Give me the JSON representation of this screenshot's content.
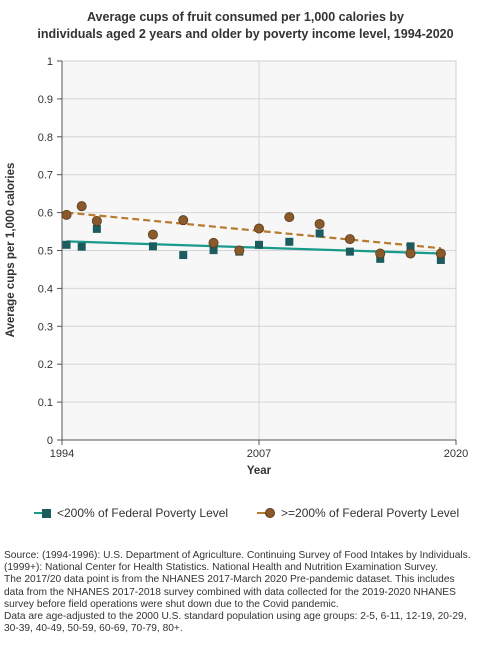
{
  "chart_data": {
    "type": "scatter",
    "title_lines": [
      "Average cups of fruit consumed per 1,000 calories by",
      "individuals aged 2 years and older by poverty income level, 1994-2020"
    ],
    "xlabel": "Year",
    "ylabel": "Average cups per 1,000 calories",
    "xlim": [
      1994,
      2020
    ],
    "ylim": [
      0,
      1
    ],
    "xticks": [
      "1994",
      "2007",
      "2020"
    ],
    "yticks": [
      "0",
      "0.1",
      "0.2",
      "0.3",
      "0.4",
      "0.5",
      "0.6",
      "0.7",
      "0.8",
      "0.9",
      "1"
    ],
    "grid": true,
    "legend_position": "bottom",
    "series": [
      {
        "name": "<200% of Federal Poverty Level",
        "color": "#1d5c5e",
        "trend_color": "#1a9a8a",
        "marker": "square",
        "trend_style": "solid",
        "x": [
          1994.3,
          1995.3,
          1996.3,
          2000,
          2002,
          2004,
          2005.7,
          2007,
          2009,
          2011,
          2013,
          2015,
          2017,
          2019
        ],
        "y": [
          0.515,
          0.51,
          0.557,
          0.511,
          0.488,
          0.501,
          0.497,
          0.515,
          0.523,
          0.545,
          0.497,
          0.478,
          0.511,
          0.475
        ],
        "trend": [
          [
            1994.3,
            0.524
          ],
          [
            2019,
            0.492
          ]
        ]
      },
      {
        "name": ">=200% of Federal Poverty Level",
        "color": "#8b5a2b",
        "trend_color": "#b87a2e",
        "marker": "circle",
        "trend_style": "dashed",
        "x": [
          1994.3,
          1995.3,
          1996.3,
          2000,
          2002,
          2004,
          2005.7,
          2007,
          2009,
          2011,
          2013,
          2015,
          2017,
          2019
        ],
        "y": [
          0.594,
          0.617,
          0.578,
          0.542,
          0.58,
          0.52,
          0.5,
          0.558,
          0.588,
          0.57,
          0.53,
          0.492,
          0.492,
          0.492
        ],
        "trend": [
          [
            1994.3,
            0.6
          ],
          [
            2019,
            0.506
          ]
        ]
      }
    ]
  },
  "source_lines": [
    "Source: (1994-1996): U.S. Department of Agriculture. Continuing Survey of Food Intakes by Individuals.",
    "(1999+): National Center for Health Statistics. National Health and Nutrition Examination Survey.",
    "The 2017/20 data point is from the NHANES 2017-March 2020 Pre-pandemic dataset. This includes",
    "data from the NHANES 2017-2018 survey combined with data collected for the 2019-2020 NHANES",
    "survey before field operations were shut down due to the Covid pandemic.",
    "Data are age-adjusted to the 2000 U.S. standard population using age groups: 2-5, 6-11, 12-19, 20-29,",
    "30-39, 40-49, 50-59, 60-69, 70-79, 80+."
  ]
}
